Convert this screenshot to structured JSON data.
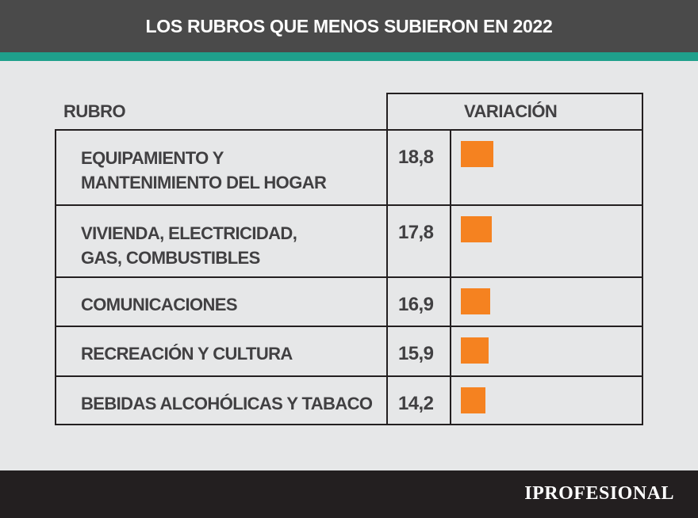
{
  "title": "LOS RUBROS QUE MENOS SUBIERON EN 2022",
  "columns": {
    "rubro": "RUBRO",
    "variacion": "VARIACIÓN"
  },
  "colors": {
    "header": "#4a4a4a",
    "accent": "#1fa08c",
    "bar": "#f58220",
    "footer": "#231f20"
  },
  "chart_data": {
    "type": "bar",
    "title": "LOS RUBROS QUE MENOS SUBIERON EN 2022",
    "categories": [
      "EQUIPAMIENTO Y\nMANTENIMIENTO DEL HOGAR",
      "VIVIENDA, ELECTRICIDAD,\nGAS, COMBUSTIBLES",
      "COMUNICACIONES",
      "RECREACIÓN Y CULTURA",
      "BEBIDAS ALCOHÓLICAS Y TABACO"
    ],
    "value_labels": [
      "18,8",
      "17,8",
      "16,9",
      "15,9",
      "14,2"
    ],
    "values": [
      18.8,
      17.8,
      16.9,
      15.9,
      14.2
    ],
    "orientation": "horizontal"
  },
  "footer": {
    "logo": "IPROFESIONAL"
  }
}
